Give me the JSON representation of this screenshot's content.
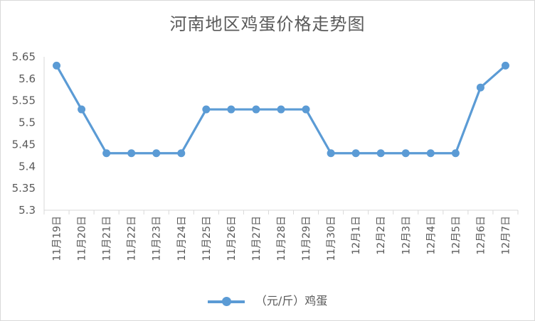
{
  "chart_data": {
    "type": "line",
    "title": "河南地区鸡蛋价格走势图",
    "categories": [
      "11月19日",
      "11月20日",
      "11月21日",
      "11月22日",
      "11月23日",
      "11月24日",
      "11月25日",
      "11月26日",
      "11月27日",
      "11月28日",
      "11月29日",
      "11月30日",
      "12月1日",
      "12月2日",
      "12月3日",
      "12月4日",
      "12月5日",
      "12月6日",
      "12月7日"
    ],
    "series": [
      {
        "name": "（元/斤）鸡蛋",
        "values": [
          5.63,
          5.53,
          5.43,
          5.43,
          5.43,
          5.43,
          5.53,
          5.53,
          5.53,
          5.53,
          5.53,
          5.43,
          5.43,
          5.43,
          5.43,
          5.43,
          5.43,
          5.58,
          5.63
        ]
      }
    ],
    "ylim": [
      5.3,
      5.65
    ],
    "yticks": [
      5.3,
      5.35,
      5.4,
      5.45,
      5.5,
      5.55,
      5.6,
      5.65
    ],
    "ytick_labels": [
      "5.3",
      "5.35",
      "5.4",
      "5.45",
      "5.5",
      "5.55",
      "5.6",
      "5.65"
    ],
    "grid": false,
    "legend_position": "bottom",
    "colors": {
      "series": "#5b9bd5",
      "axis": "#d9d9d9",
      "text": "#595959"
    }
  }
}
